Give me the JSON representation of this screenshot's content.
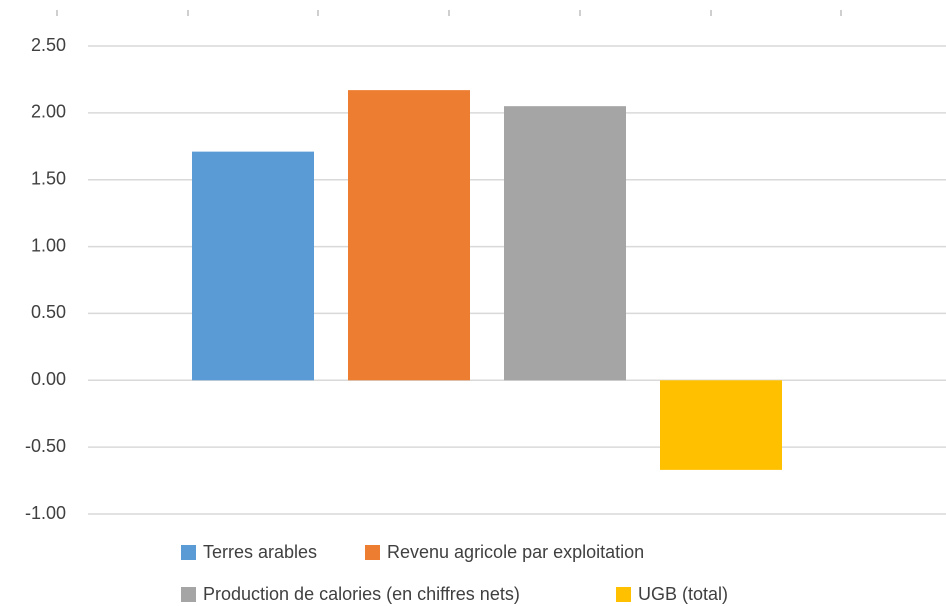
{
  "chart_data": {
    "type": "bar",
    "categories": [
      null
    ],
    "series": [
      {
        "name": "Terres arables",
        "color": "#5b9bd5",
        "values": [
          1.71
        ]
      },
      {
        "name": "Revenu agricole par exploitation",
        "color": "#ed7d31",
        "values": [
          2.17
        ]
      },
      {
        "name": "Production de calories (en chiffres nets)",
        "color": "#a5a5a5",
        "values": [
          2.05
        ]
      },
      {
        "name": "UGB (total)",
        "color": "#ffc000",
        "values": [
          -0.67
        ]
      }
    ],
    "ylim": [
      -1,
      2.5
    ],
    "yticks": [
      {
        "value": 2.5,
        "label": "2.50"
      },
      {
        "value": 2,
        "label": "2.00"
      },
      {
        "value": 1.5,
        "label": "1.50"
      },
      {
        "value": 1,
        "label": "1.00"
      },
      {
        "value": 0.5,
        "label": "0.50"
      },
      {
        "value": 0,
        "label": "0.00"
      },
      {
        "value": -0.5,
        "label": "-0.50"
      },
      {
        "value": -1,
        "label": "-1.00"
      }
    ],
    "grid": true,
    "legend": "bottom"
  }
}
